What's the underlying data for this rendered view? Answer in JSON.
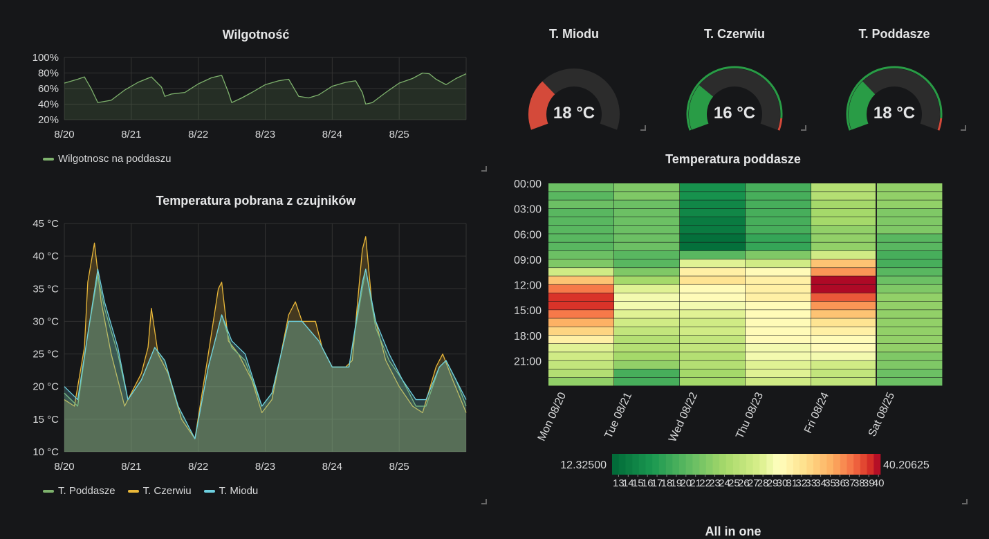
{
  "humidity_panel": {
    "title": "Wilgotność",
    "legend": [
      {
        "label": "Wilgotnosc na poddaszu",
        "color": "#7eb26d"
      }
    ]
  },
  "temp_panel": {
    "title": "Temperatura pobrana z czujników",
    "legend": [
      {
        "label": "T. Poddasze",
        "color": "#7eb26d"
      },
      {
        "label": "T. Czerwiu",
        "color": "#eab839"
      },
      {
        "label": "T. Miodu",
        "color": "#6ed0e0"
      }
    ]
  },
  "gauges": [
    {
      "title": "T. Miodu",
      "value_text": "18 °C",
      "level": 0.3,
      "color": "#d44a3a"
    },
    {
      "title": "T. Czerwiu",
      "value_text": "16 °C",
      "level": 0.27,
      "color": "#299c46"
    },
    {
      "title": "T. Poddasze",
      "value_text": "18 °C",
      "level": 0.3,
      "color": "#299c46"
    }
  ],
  "heatmap_panel": {
    "title": "Temperatura poddasze",
    "min_label": "12.32500",
    "max_label": "40.20625",
    "scale_ticks": [
      "13",
      "14",
      "15",
      "16",
      "17",
      "18",
      "19",
      "20",
      "21",
      "22",
      "23",
      "24",
      "25",
      "26",
      "27",
      "28",
      "29",
      "30",
      "31",
      "32",
      "33",
      "34",
      "35",
      "36",
      "37",
      "38",
      "39",
      "40"
    ]
  },
  "bottom_panel": {
    "title": "All in one"
  },
  "chart_data": [
    {
      "type": "area",
      "title": "Wilgotność",
      "x_ticks": [
        "8/20",
        "8/21",
        "8/22",
        "8/23",
        "8/24",
        "8/25"
      ],
      "y_ticks": [
        "100%",
        "80%",
        "60%",
        "40%",
        "20%"
      ],
      "ylim": [
        20,
        100
      ],
      "xlim_days": [
        20,
        26
      ],
      "series": [
        {
          "name": "Wilgotnosc na poddaszu",
          "color": "#7eb26d",
          "points": [
            [
              20.0,
              67
            ],
            [
              20.2,
              72
            ],
            [
              20.3,
              75
            ],
            [
              20.4,
              60
            ],
            [
              20.5,
              42
            ],
            [
              20.7,
              45
            ],
            [
              20.9,
              58
            ],
            [
              21.1,
              68
            ],
            [
              21.3,
              75
            ],
            [
              21.45,
              62
            ],
            [
              21.5,
              50
            ],
            [
              21.6,
              53
            ],
            [
              21.8,
              55
            ],
            [
              22.0,
              66
            ],
            [
              22.2,
              74
            ],
            [
              22.35,
              77
            ],
            [
              22.45,
              55
            ],
            [
              22.5,
              42
            ],
            [
              22.65,
              48
            ],
            [
              22.8,
              55
            ],
            [
              23.0,
              65
            ],
            [
              23.2,
              70
            ],
            [
              23.35,
              72
            ],
            [
              23.5,
              50
            ],
            [
              23.65,
              48
            ],
            [
              23.8,
              52
            ],
            [
              24.0,
              63
            ],
            [
              24.2,
              68
            ],
            [
              24.35,
              70
            ],
            [
              24.45,
              55
            ],
            [
              24.5,
              40
            ],
            [
              24.6,
              42
            ],
            [
              24.8,
              55
            ],
            [
              25.0,
              67
            ],
            [
              25.2,
              73
            ],
            [
              25.35,
              80
            ],
            [
              25.45,
              79
            ],
            [
              25.55,
              72
            ],
            [
              25.7,
              65
            ],
            [
              25.85,
              73
            ],
            [
              26.0,
              79
            ]
          ]
        }
      ]
    },
    {
      "type": "line",
      "title": "Temperatura pobrana z czujników",
      "x_ticks": [
        "8/20",
        "8/21",
        "8/22",
        "8/23",
        "8/24",
        "8/25"
      ],
      "y_ticks": [
        "45 °C",
        "40 °C",
        "35 °C",
        "30 °C",
        "25 °C",
        "20 °C",
        "15 °C",
        "10 °C"
      ],
      "ylim": [
        10,
        45
      ],
      "xlim_days": [
        20,
        26
      ],
      "series": [
        {
          "name": "T. Czerwiu",
          "color": "#eab839",
          "points": [
            [
              20.0,
              18
            ],
            [
              20.15,
              17
            ],
            [
              20.3,
              26
            ],
            [
              20.35,
              36
            ],
            [
              20.45,
              42
            ],
            [
              20.55,
              33
            ],
            [
              20.7,
              25
            ],
            [
              20.9,
              17
            ],
            [
              21.15,
              22
            ],
            [
              21.25,
              26
            ],
            [
              21.3,
              32
            ],
            [
              21.4,
              25
            ],
            [
              21.55,
              22
            ],
            [
              21.75,
              15
            ],
            [
              21.95,
              12
            ],
            [
              22.15,
              25
            ],
            [
              22.3,
              35
            ],
            [
              22.35,
              36
            ],
            [
              22.45,
              27
            ],
            [
              22.6,
              25
            ],
            [
              22.8,
              21
            ],
            [
              22.95,
              16
            ],
            [
              23.1,
              18
            ],
            [
              23.35,
              31
            ],
            [
              23.45,
              33
            ],
            [
              23.55,
              30
            ],
            [
              23.75,
              30
            ],
            [
              23.85,
              26
            ],
            [
              24.0,
              23
            ],
            [
              24.2,
              23
            ],
            [
              24.3,
              24
            ],
            [
              24.45,
              41
            ],
            [
              24.5,
              43
            ],
            [
              24.6,
              32
            ],
            [
              24.8,
              24
            ],
            [
              25.0,
              20
            ],
            [
              25.2,
              17
            ],
            [
              25.35,
              16
            ],
            [
              25.55,
              23
            ],
            [
              25.65,
              25
            ],
            [
              25.8,
              21
            ],
            [
              26.0,
              16
            ]
          ]
        },
        {
          "name": "T. Poddasze",
          "color": "#7eb26d",
          "points": [
            [
              20.0,
              19
            ],
            [
              20.2,
              17
            ],
            [
              20.35,
              28
            ],
            [
              20.5,
              37
            ],
            [
              20.6,
              32
            ],
            [
              20.8,
              25
            ],
            [
              20.95,
              18
            ],
            [
              21.15,
              21
            ],
            [
              21.35,
              26
            ],
            [
              21.5,
              24
            ],
            [
              21.7,
              17
            ],
            [
              21.95,
              12
            ],
            [
              22.15,
              23
            ],
            [
              22.35,
              31
            ],
            [
              22.5,
              26
            ],
            [
              22.7,
              24
            ],
            [
              22.95,
              17
            ],
            [
              23.1,
              19
            ],
            [
              23.35,
              30
            ],
            [
              23.55,
              30
            ],
            [
              23.8,
              27
            ],
            [
              24.0,
              23
            ],
            [
              24.25,
              23
            ],
            [
              24.45,
              35
            ],
            [
              24.5,
              38
            ],
            [
              24.65,
              29
            ],
            [
              24.85,
              24
            ],
            [
              25.05,
              21
            ],
            [
              25.25,
              17
            ],
            [
              25.4,
              17
            ],
            [
              25.6,
              23
            ],
            [
              25.7,
              24
            ],
            [
              25.85,
              21
            ],
            [
              26.0,
              17
            ]
          ]
        },
        {
          "name": "T. Miodu",
          "color": "#6ed0e0",
          "points": [
            [
              20.0,
              20
            ],
            [
              20.2,
              18
            ],
            [
              20.35,
              28
            ],
            [
              20.5,
              38
            ],
            [
              20.6,
              33
            ],
            [
              20.8,
              26
            ],
            [
              20.95,
              18
            ],
            [
              21.15,
              21
            ],
            [
              21.35,
              26
            ],
            [
              21.5,
              24
            ],
            [
              21.7,
              17
            ],
            [
              21.95,
              12
            ],
            [
              22.15,
              23
            ],
            [
              22.35,
              31
            ],
            [
              22.5,
              27
            ],
            [
              22.7,
              25
            ],
            [
              22.95,
              17
            ],
            [
              23.1,
              19
            ],
            [
              23.35,
              30
            ],
            [
              23.55,
              30
            ],
            [
              23.8,
              27
            ],
            [
              24.0,
              23
            ],
            [
              24.25,
              23
            ],
            [
              24.45,
              36
            ],
            [
              24.5,
              38
            ],
            [
              24.65,
              30
            ],
            [
              24.85,
              25
            ],
            [
              25.05,
              21
            ],
            [
              25.25,
              18
            ],
            [
              25.4,
              18
            ],
            [
              25.6,
              23
            ],
            [
              25.7,
              24
            ],
            [
              25.85,
              21
            ],
            [
              26.0,
              18
            ]
          ]
        }
      ]
    },
    {
      "type": "heatmap",
      "title": "Temperatura poddasze",
      "y_ticks": [
        "00:00",
        "03:00",
        "06:00",
        "09:00",
        "12:00",
        "15:00",
        "18:00",
        "21:00"
      ],
      "x_ticks": [
        "Mon 08/20",
        "Tue 08/21",
        "Wed 08/22",
        "Thu 08/23",
        "Fri 08/24",
        "Sat 08/25"
      ],
      "range": [
        12.325,
        40.20625
      ],
      "values": [
        [
          21,
          20,
          21,
          20,
          20,
          20,
          20,
          20,
          21,
          22,
          27,
          34,
          37,
          39,
          39,
          37,
          35,
          33,
          31,
          28,
          27,
          26,
          25,
          23
        ],
        [
          22,
          22,
          21,
          21,
          21,
          21,
          21,
          21,
          20,
          20,
          22,
          24,
          28,
          29,
          29,
          28,
          27,
          26,
          25,
          25,
          24,
          23,
          19,
          19
        ],
        [
          16,
          16,
          15,
          15,
          14,
          14,
          13,
          13,
          20,
          28,
          31,
          32,
          30,
          30,
          29,
          28,
          27,
          27,
          26,
          26,
          25,
          25,
          24,
          24
        ],
        [
          19,
          19,
          19,
          19,
          19,
          19,
          18,
          18,
          22,
          27,
          30,
          31,
          31,
          31,
          30,
          30,
          30,
          30,
          30,
          29,
          29,
          28,
          28,
          27
        ],
        [
          25,
          25,
          24,
          24,
          24,
          23,
          23,
          23,
          27,
          34,
          36,
          40,
          40,
          38,
          36,
          34,
          32,
          31,
          30,
          30,
          29,
          27,
          26,
          26
        ],
        [
          23,
          23,
          23,
          22,
          22,
          22,
          20,
          20,
          19,
          19,
          20,
          21,
          22,
          23,
          23,
          23,
          23,
          23,
          23,
          23,
          22,
          22,
          21,
          21
        ]
      ]
    }
  ]
}
